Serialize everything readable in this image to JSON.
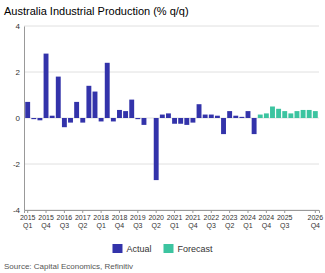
{
  "chart_data": {
    "type": "bar",
    "title": "Australia Industrial Production (% q/q)",
    "annotations": [
      "Source: Capital Economics, Refinitiv"
    ],
    "categories": [
      "2015\nQ1",
      null,
      null,
      "2015\nQ4",
      null,
      null,
      "2016\nQ3",
      null,
      null,
      "2017\nQ2",
      null,
      null,
      "2018\nQ1",
      null,
      null,
      "2018\nQ4",
      null,
      null,
      "2019\nQ3",
      null,
      null,
      "2020\nQ2",
      null,
      null,
      "2021\nQ1",
      null,
      null,
      "2021\nQ4",
      null,
      null,
      "2022\nQ3",
      null,
      null,
      "2023\nQ2",
      null,
      null,
      "2024\nQ1",
      null,
      null,
      "2024\nQ4",
      null,
      null,
      "2025\nQ3",
      null,
      null,
      null,
      null,
      "2026\nQ4"
    ],
    "series": [
      {
        "name": "Actual",
        "color": "#3333aa",
        "values": [
          0.7,
          -0.05,
          -0.1,
          2.8,
          0.1,
          1.8,
          -0.4,
          -0.2,
          0.7,
          -0.2,
          1.4,
          1.15,
          -0.15,
          2.4,
          -0.15,
          0.35,
          0.3,
          0.8,
          -0.05,
          -0.3,
          0.0,
          -2.7,
          0.15,
          0.2,
          -0.25,
          -0.25,
          -0.3,
          -0.2,
          0.6,
          0.15,
          0.15,
          0.1,
          -0.7,
          0.3,
          0.1,
          0.05,
          0.3,
          -0.7,
          null,
          null,
          null,
          null,
          null,
          null,
          null,
          null,
          null,
          null
        ]
      },
      {
        "name": "Forecast",
        "color": "#3cc4a0",
        "values": [
          null,
          null,
          null,
          null,
          null,
          null,
          null,
          null,
          null,
          null,
          null,
          null,
          null,
          null,
          null,
          null,
          null,
          null,
          null,
          null,
          null,
          null,
          null,
          null,
          null,
          null,
          null,
          null,
          null,
          null,
          null,
          null,
          null,
          null,
          null,
          null,
          null,
          null,
          0.15,
          0.2,
          0.5,
          0.4,
          0.3,
          0.2,
          0.3,
          0.35,
          0.35,
          0.3
        ]
      }
    ],
    "ylim": [
      -4,
      4
    ],
    "yticks": [
      -4,
      -2,
      0,
      2,
      4
    ],
    "grid": true,
    "legend": "bottom"
  }
}
